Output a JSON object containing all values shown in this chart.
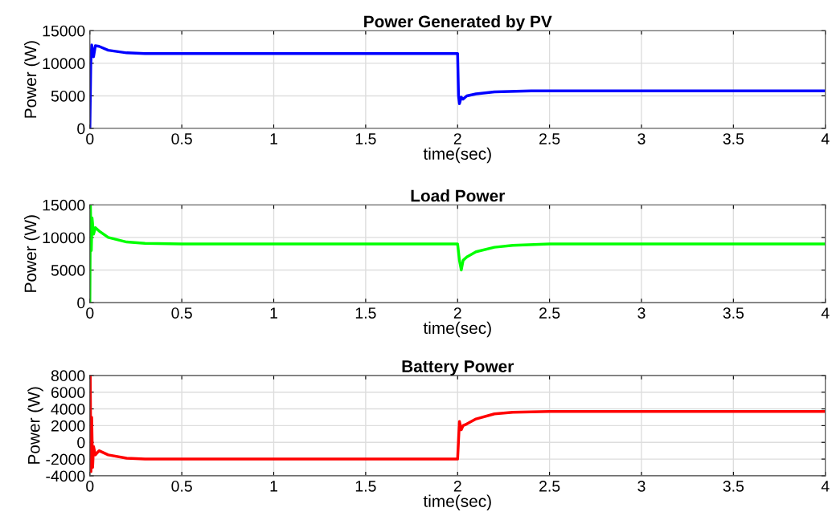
{
  "chart_data": [
    {
      "type": "line",
      "title": "Power Generated by PV",
      "xlabel": "time(sec)",
      "ylabel": "Power (W)",
      "x": [
        0,
        0.005,
        0.01,
        0.02,
        0.03,
        0.05,
        0.1,
        0.2,
        0.3,
        2.0,
        2.005,
        2.01,
        2.02,
        2.03,
        2.05,
        2.1,
        2.2,
        2.4,
        3,
        4
      ],
      "series": [
        {
          "color": "#0000ff",
          "values": [
            0,
            10000,
            12800,
            11000,
            12700,
            12600,
            12000,
            11600,
            11500,
            11500,
            5000,
            3800,
            4800,
            4500,
            5000,
            5300,
            5600,
            5750,
            5750,
            5750
          ]
        }
      ],
      "xlim": [
        0,
        4
      ],
      "xticks": [
        0,
        0.5,
        1,
        1.5,
        2,
        2.5,
        3,
        3.5,
        4
      ],
      "ylim": [
        0,
        15000
      ],
      "yticks": [
        0,
        5000,
        10000,
        15000
      ],
      "grid": true
    },
    {
      "type": "line",
      "title": "Load Power",
      "xlabel": "time(sec)",
      "ylabel": "Power (W)",
      "x": [
        0,
        0.003,
        0.008,
        0.012,
        0.02,
        0.03,
        0.05,
        0.1,
        0.2,
        0.3,
        0.5,
        2.0,
        2.01,
        2.02,
        2.03,
        2.05,
        2.1,
        2.2,
        2.3,
        2.5,
        4
      ],
      "series": [
        {
          "color": "#00ff00",
          "values": [
            0,
            15000,
            8000,
            13000,
            10500,
            11500,
            11000,
            10000,
            9300,
            9100,
            9000,
            9000,
            6500,
            5000,
            6500,
            7000,
            7800,
            8500,
            8800,
            9000,
            9000
          ]
        }
      ],
      "xlim": [
        0,
        4
      ],
      "xticks": [
        0,
        0.5,
        1,
        1.5,
        2,
        2.5,
        3,
        3.5,
        4
      ],
      "ylim": [
        0,
        15000
      ],
      "yticks": [
        0,
        5000,
        10000,
        15000
      ],
      "grid": true
    },
    {
      "type": "line",
      "title": "Battery Power",
      "xlabel": "time(sec)",
      "ylabel": "Power (W)",
      "x": [
        0,
        0.002,
        0.006,
        0.01,
        0.015,
        0.02,
        0.03,
        0.05,
        0.1,
        0.2,
        0.3,
        2.0,
        2.01,
        2.02,
        2.03,
        2.05,
        2.1,
        2.2,
        2.3,
        2.5,
        4
      ],
      "series": [
        {
          "color": "#ff0000",
          "values": [
            0,
            8000,
            -3500,
            3000,
            -3000,
            -500,
            -1500,
            -1000,
            -1500,
            -1900,
            -2000,
            -2000,
            2500,
            1500,
            2000,
            2200,
            2800,
            3400,
            3600,
            3700,
            3700
          ]
        }
      ],
      "xlim": [
        0,
        4
      ],
      "xticks": [
        0,
        0.5,
        1,
        1.5,
        2,
        2.5,
        3,
        3.5,
        4
      ],
      "ylim": [
        -4000,
        8000
      ],
      "yticks": [
        -4000,
        -2000,
        0,
        2000,
        4000,
        6000,
        8000
      ],
      "grid": true
    }
  ]
}
